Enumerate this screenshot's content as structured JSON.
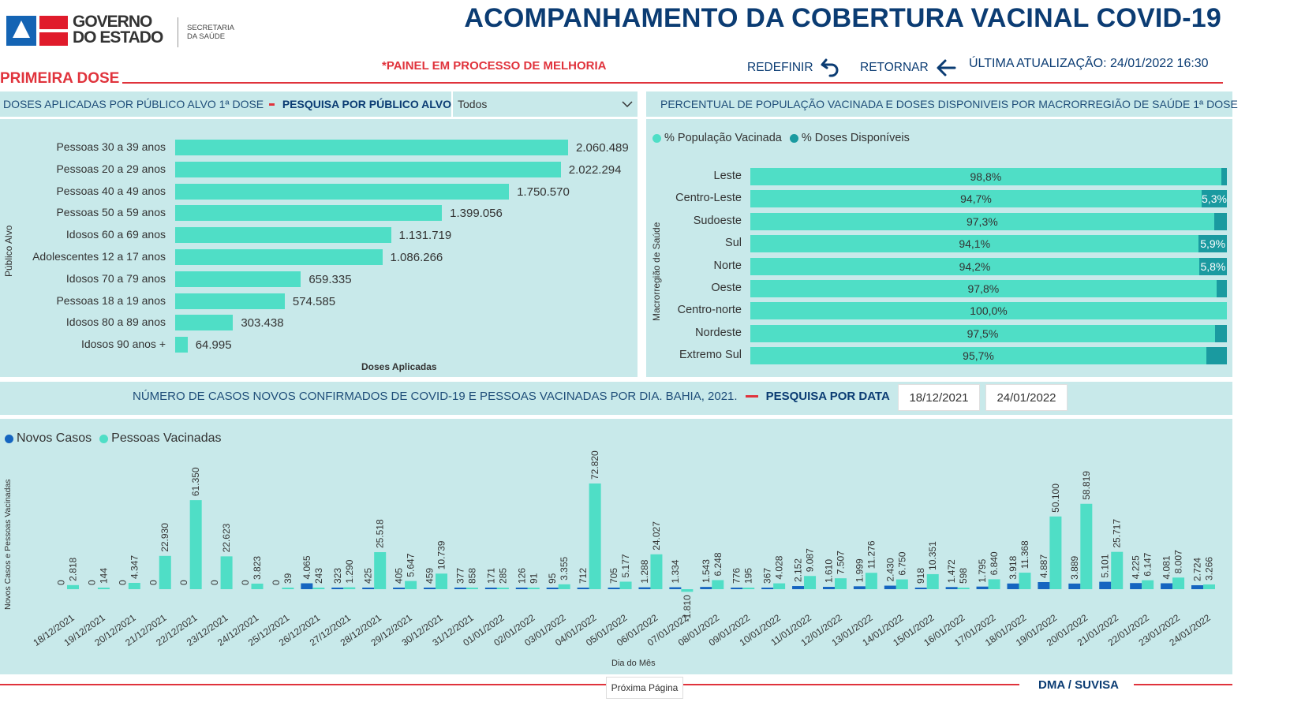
{
  "header": {
    "logo_text_line1": "GOVERNO",
    "logo_text_line2": "DO ESTADO",
    "logo_sub_line1": "SECRETARIA",
    "logo_sub_line2": "DA SAÚDE",
    "title": "ACOMPANHAMENTO DA COBERTURA VACINAL COVID-19",
    "notice": "*PAINEL EM PROCESSO DE MELHORIA",
    "reset_label": "REDEFINIR",
    "back_label": "RETORNAR",
    "updated_label": "ÚLTIMA ATUALIZAÇÃO:",
    "updated_value": "24/01/2022 16:30",
    "section_title": "PRIMEIRA DOSE"
  },
  "colors": {
    "primary_bar": "#4fdec6",
    "secondary_bar": "#1a9aa0",
    "cases_bar": "#1565c0",
    "accent_red": "#e0333c",
    "navy": "#0b3c73",
    "panel_bg": "#c8e9ea"
  },
  "left_panel": {
    "title": "DOSES APLICADAS POR PÚBLICO ALVO 1ª DOSE",
    "filter_label": "PESQUISA POR PÚBLICO ALVO",
    "filter_value": "Todos"
  },
  "right_panel": {
    "title": "PERCENTUAL DE POPULAÇÃO VACINADA E DOSES DISPONIVEIS POR MACRORREGIÃO DE SAÚDE 1ª DOSE"
  },
  "bottom_panel": {
    "title": "NÚMERO DE CASOS NOVOS CONFIRMADOS DE COVID-19 E PESSOAS VACINADAS POR DIA. BAHIA, 2021.",
    "filter_label": "PESQUISA POR DATA",
    "date_from": "18/12/2021",
    "date_to": "24/01/2022"
  },
  "footer": {
    "org": "DMA / SUVISA",
    "next_page": "Próxima Página"
  },
  "chart_data": [
    {
      "type": "bar",
      "orientation": "horizontal",
      "title": "DOSES APLICADAS POR PÚBLICO ALVO 1ª DOSE",
      "xlabel": "Doses Aplicadas",
      "ylabel": "Público Alvo",
      "categories": [
        "Pessoas 30 a 39 anos",
        "Pessoas 20 a 29 anos",
        "Pessoas 40 a 49 anos",
        "Pessoas 50 a 59 anos",
        "Idosos 60 a 69 anos",
        "Adolescentes 12 a 17 anos",
        "Idosos 70 a 79 anos",
        "Pessoas 18 a 19 anos",
        "Idosos 80 a 89 anos",
        "Idosos 90 anos +"
      ],
      "values": [
        2060489,
        2022294,
        1750570,
        1399056,
        1131719,
        1086266,
        659335,
        574585,
        303438,
        64995
      ],
      "labels": [
        "2.060.489",
        "2.022.294",
        "1.750.570",
        "1.399.056",
        "1.131.719",
        "1.086.266",
        "659.335",
        "574.585",
        "303.438",
        "64.995"
      ]
    },
    {
      "type": "bar",
      "orientation": "horizontal",
      "stacked": true,
      "title": "PERCENTUAL DE POPULAÇÃO VACINADA E DOSES DISPONIVEIS POR MACRORREGIÃO DE SAÚDE 1ª DOSE",
      "ylabel": "Macrorregião de Saúde",
      "legend": [
        "% População Vacinada",
        "% Doses Disponíveis"
      ],
      "legend_position": "top-left",
      "categories": [
        "Leste",
        "Centro-Leste",
        "Sudoeste",
        "Sul",
        "Norte",
        "Oeste",
        "Centro-norte",
        "Nordeste",
        "Extremo Sul"
      ],
      "series": [
        {
          "name": "% População Vacinada",
          "values": [
            98.8,
            94.7,
            97.3,
            94.1,
            94.2,
            97.8,
            100.0,
            97.5,
            95.7
          ],
          "labels": [
            "98,8%",
            "94,7%",
            "97,3%",
            "94,1%",
            "94,2%",
            "97,8%",
            "100,0%",
            "97,5%",
            "95,7%"
          ]
        },
        {
          "name": "% Doses Disponíveis",
          "values": [
            1.2,
            5.3,
            2.7,
            5.9,
            5.8,
            2.2,
            0,
            2.5,
            4.3
          ],
          "labels": [
            "",
            "5,3%",
            "",
            "5,9%",
            "5,8%",
            "",
            "",
            "",
            ""
          ]
        }
      ]
    },
    {
      "type": "bar",
      "title": "NÚMERO DE CASOS NOVOS CONFIRMADOS DE COVID-19 E PESSOAS VACINADAS POR DIA. BAHIA, 2021.",
      "xlabel": "Dia do Mês",
      "ylabel": "Novos Casos e Pessoas Vacinadas",
      "legend": [
        "Novos Casos",
        "Pessoas Vacinadas"
      ],
      "legend_position": "top-left",
      "categories": [
        "18/12/2021",
        "19/12/2021",
        "20/12/2021",
        "21/12/2021",
        "22/12/2021",
        "23/12/2021",
        "24/12/2021",
        "25/12/2021",
        "26/12/2021",
        "27/12/2021",
        "28/12/2021",
        "29/12/2021",
        "30/12/2021",
        "31/12/2021",
        "01/01/2022",
        "02/01/2022",
        "03/01/2022",
        "04/01/2022",
        "05/01/2022",
        "06/01/2022",
        "07/01/2022",
        "08/01/2022",
        "09/01/2022",
        "10/01/2022",
        "11/01/2022",
        "12/01/2022",
        "13/01/2022",
        "14/01/2022",
        "15/01/2022",
        "16/01/2022",
        "17/01/2022",
        "18/01/2022",
        "19/01/2022",
        "20/01/2022",
        "21/01/2022",
        "22/01/2022",
        "23/01/2022",
        "24/01/2022"
      ],
      "series": [
        {
          "name": "Novos Casos",
          "values": [
            0,
            0,
            0,
            0,
            0,
            0,
            0,
            0,
            4065,
            323,
            425,
            405,
            459,
            377,
            171,
            126,
            95,
            712,
            705,
            1288,
            1334,
            1543,
            776,
            367,
            2152,
            1610,
            1999,
            2430,
            918,
            1472,
            1795,
            3918,
            4887,
            3889,
            5101,
            4225,
            4081,
            2724
          ],
          "labels": [
            "0",
            "0",
            "0",
            "0",
            "0",
            "0",
            "0",
            "0",
            "4.065",
            "323",
            "425",
            "405",
            "459",
            "377",
            "171",
            "126",
            "95",
            "712",
            "705",
            "1.288",
            "1.334",
            "1.543",
            "776",
            "367",
            "2.152",
            "1.610",
            "1.999",
            "2.430",
            "918",
            "1.472",
            "1.795",
            "3.918",
            "4.887",
            "3.889",
            "5.101",
            "4.225",
            "4.081",
            "2.724"
          ]
        },
        {
          "name": "Pessoas Vacinadas",
          "values": [
            2818,
            144,
            4347,
            22930,
            61350,
            22623,
            3823,
            39,
            243,
            1290,
            25518,
            5647,
            10739,
            858,
            285,
            91,
            3355,
            72820,
            5177,
            24027,
            -1810,
            6248,
            195,
            4028,
            9087,
            7507,
            11276,
            6750,
            10351,
            598,
            6840,
            11368,
            50100,
            58819,
            25717,
            6147,
            8007,
            3266
          ],
          "labels": [
            "2.818",
            "144",
            "4.347",
            "22.930",
            "61.350",
            "22.623",
            "3.823",
            "39",
            "243",
            "1.290",
            "25.518",
            "5.647",
            "10.739",
            "858",
            "285",
            "91",
            "3.355",
            "72.820",
            "5.177",
            "24.027",
            "-1.810",
            "6.248",
            "195",
            "4.028",
            "9.087",
            "7.507",
            "11.276",
            "6.750",
            "10.351",
            "598",
            "6.840",
            "11.368",
            "50.100",
            "58.819",
            "25.717",
            "6.147",
            "8.007",
            "3.266"
          ]
        }
      ]
    }
  ]
}
